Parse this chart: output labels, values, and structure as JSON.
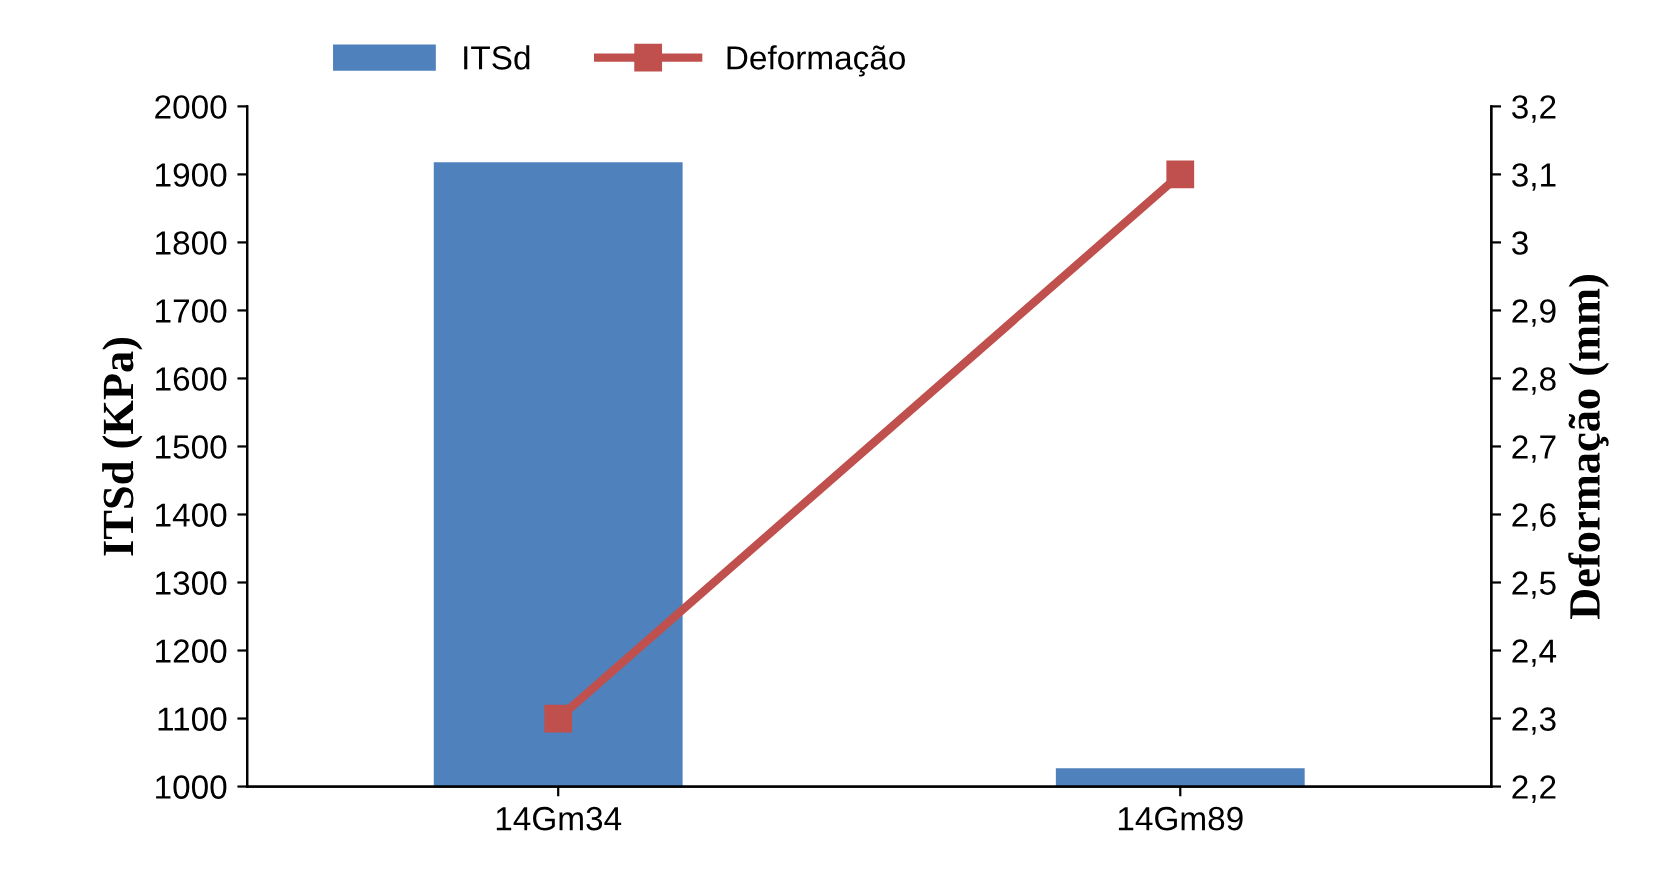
{
  "chart_data": {
    "type": "bar",
    "categories": [
      "14Gm34",
      "14Gm89"
    ],
    "ylabel": "ITSd (KPa)",
    "y2label": "Deformação (mm)",
    "series": [
      {
        "name": "ITSd",
        "color": "#4f81bd",
        "values": [
          1918,
          1027
        ]
      },
      {
        "name": "Deformação",
        "type": "line",
        "axis": "y2",
        "color": "#c0504d",
        "marker": "square",
        "line_style": "solid",
        "values": [
          2.3,
          3.1
        ]
      }
    ],
    "ylim": [
      1000,
      2000
    ],
    "yticks": [
      1000,
      1100,
      1200,
      1300,
      1400,
      1500,
      1600,
      1700,
      1800,
      1900,
      2000
    ],
    "y2lim": [
      2.2,
      3.2
    ],
    "y2ticks": [
      {
        "value": 2.2,
        "label": "2,2"
      },
      {
        "value": 2.3,
        "label": "2,3"
      },
      {
        "value": 2.4,
        "label": "2,4"
      },
      {
        "value": 2.5,
        "label": "2,5"
      },
      {
        "value": 2.6,
        "label": "2,6"
      },
      {
        "value": 2.7,
        "label": "2,7"
      },
      {
        "value": 2.8,
        "label": "2,8"
      },
      {
        "value": 2.9,
        "label": "2,9"
      },
      {
        "value": 3,
        "label": "3"
      },
      {
        "value": 3.1,
        "label": "3,1"
      },
      {
        "value": 3.2,
        "label": "3,2"
      }
    ],
    "grid": false,
    "legend": "top"
  }
}
